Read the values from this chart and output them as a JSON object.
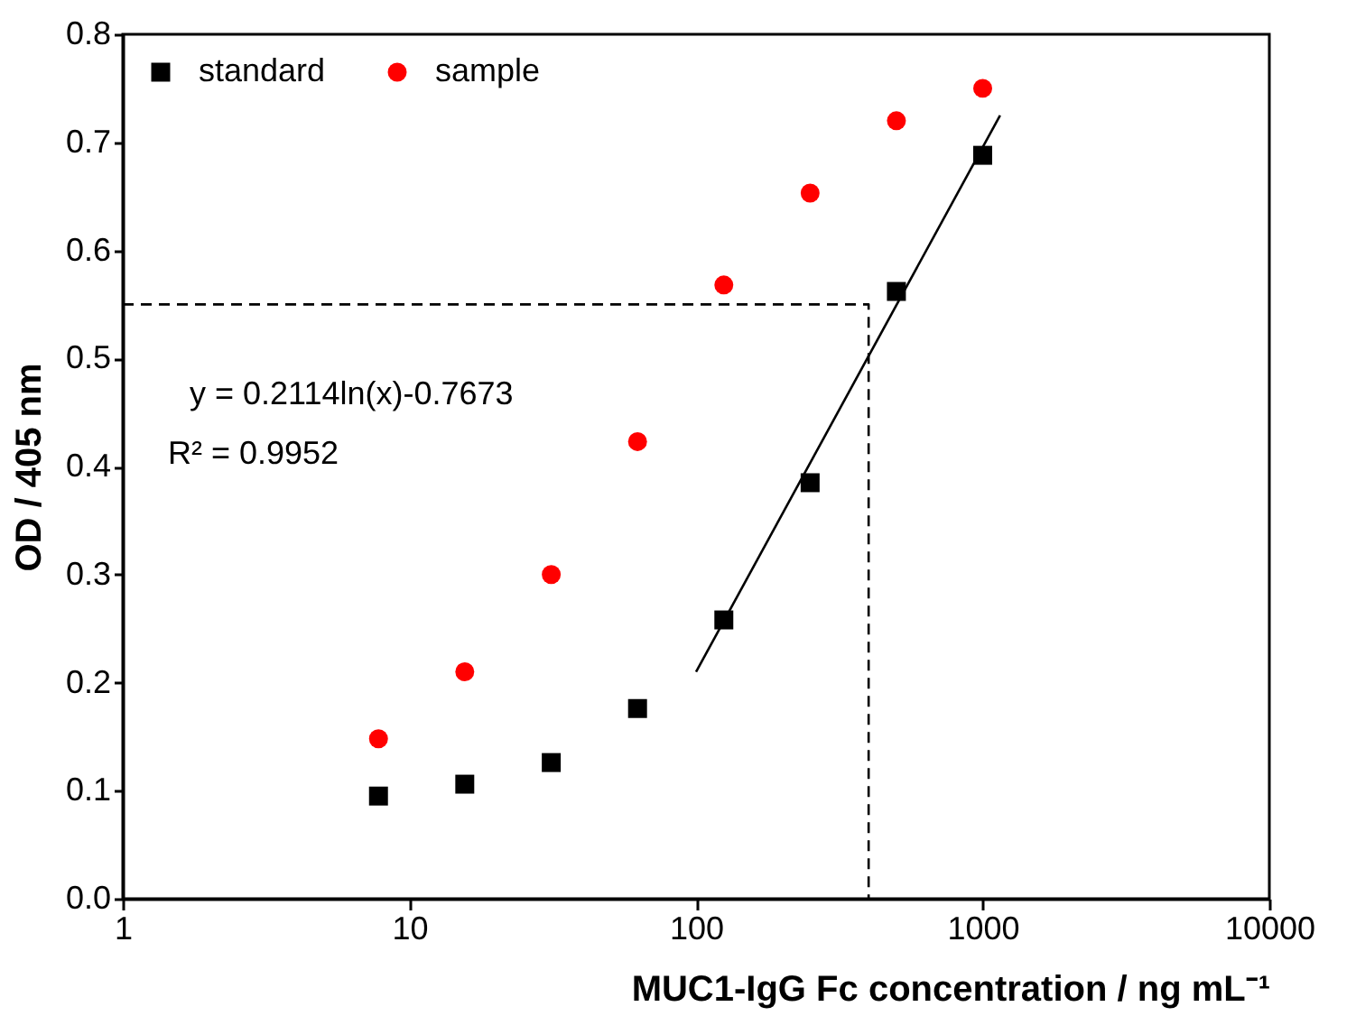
{
  "chart_data": {
    "type": "scatter",
    "xlabel": "MUC1-IgG Fc concentration / ng mL⁻¹",
    "ylabel": "OD / 405 nm",
    "log": "x",
    "xlim": [
      1,
      10000
    ],
    "xticks": [
      1,
      10,
      100,
      1000,
      10000
    ],
    "ylim": [
      0,
      0.8
    ],
    "yticks": [
      {
        "value": 0,
        "label": "0.0"
      },
      0.1,
      0.2,
      0.3,
      0.4,
      0.5,
      0.6,
      0.7,
      0.8
    ],
    "legend": "top left",
    "grid": false,
    "x": [
      7.8,
      15.6,
      31.25,
      62.5,
      125,
      250,
      500,
      1000
    ],
    "series": [
      {
        "name": "standard",
        "color": "#000000",
        "marker": "square",
        "values": [
          0.095,
          0.106,
          0.126,
          0.176,
          0.258,
          0.385,
          0.562,
          0.688
        ]
      },
      {
        "name": "sample",
        "color": "#ff0000",
        "marker": "circle",
        "values": [
          0.148,
          0.21,
          0.3,
          0.423,
          0.568,
          0.653,
          0.72,
          0.75
        ]
      },
      {
        "type": "line",
        "color": "#000000",
        "line_style": "solid",
        "x": [
          100,
          1150
        ],
        "values": [
          0.21,
          0.725
        ]
      },
      {
        "type": "line",
        "color": "#000000",
        "line_style": "dashed",
        "x": [
          1,
          400,
          400
        ],
        "values": [
          0.55,
          0.55,
          0
        ]
      }
    ],
    "annotations": [
      "y = 0.2114ln(x)-0.7673",
      "R² = 0.9952"
    ]
  }
}
